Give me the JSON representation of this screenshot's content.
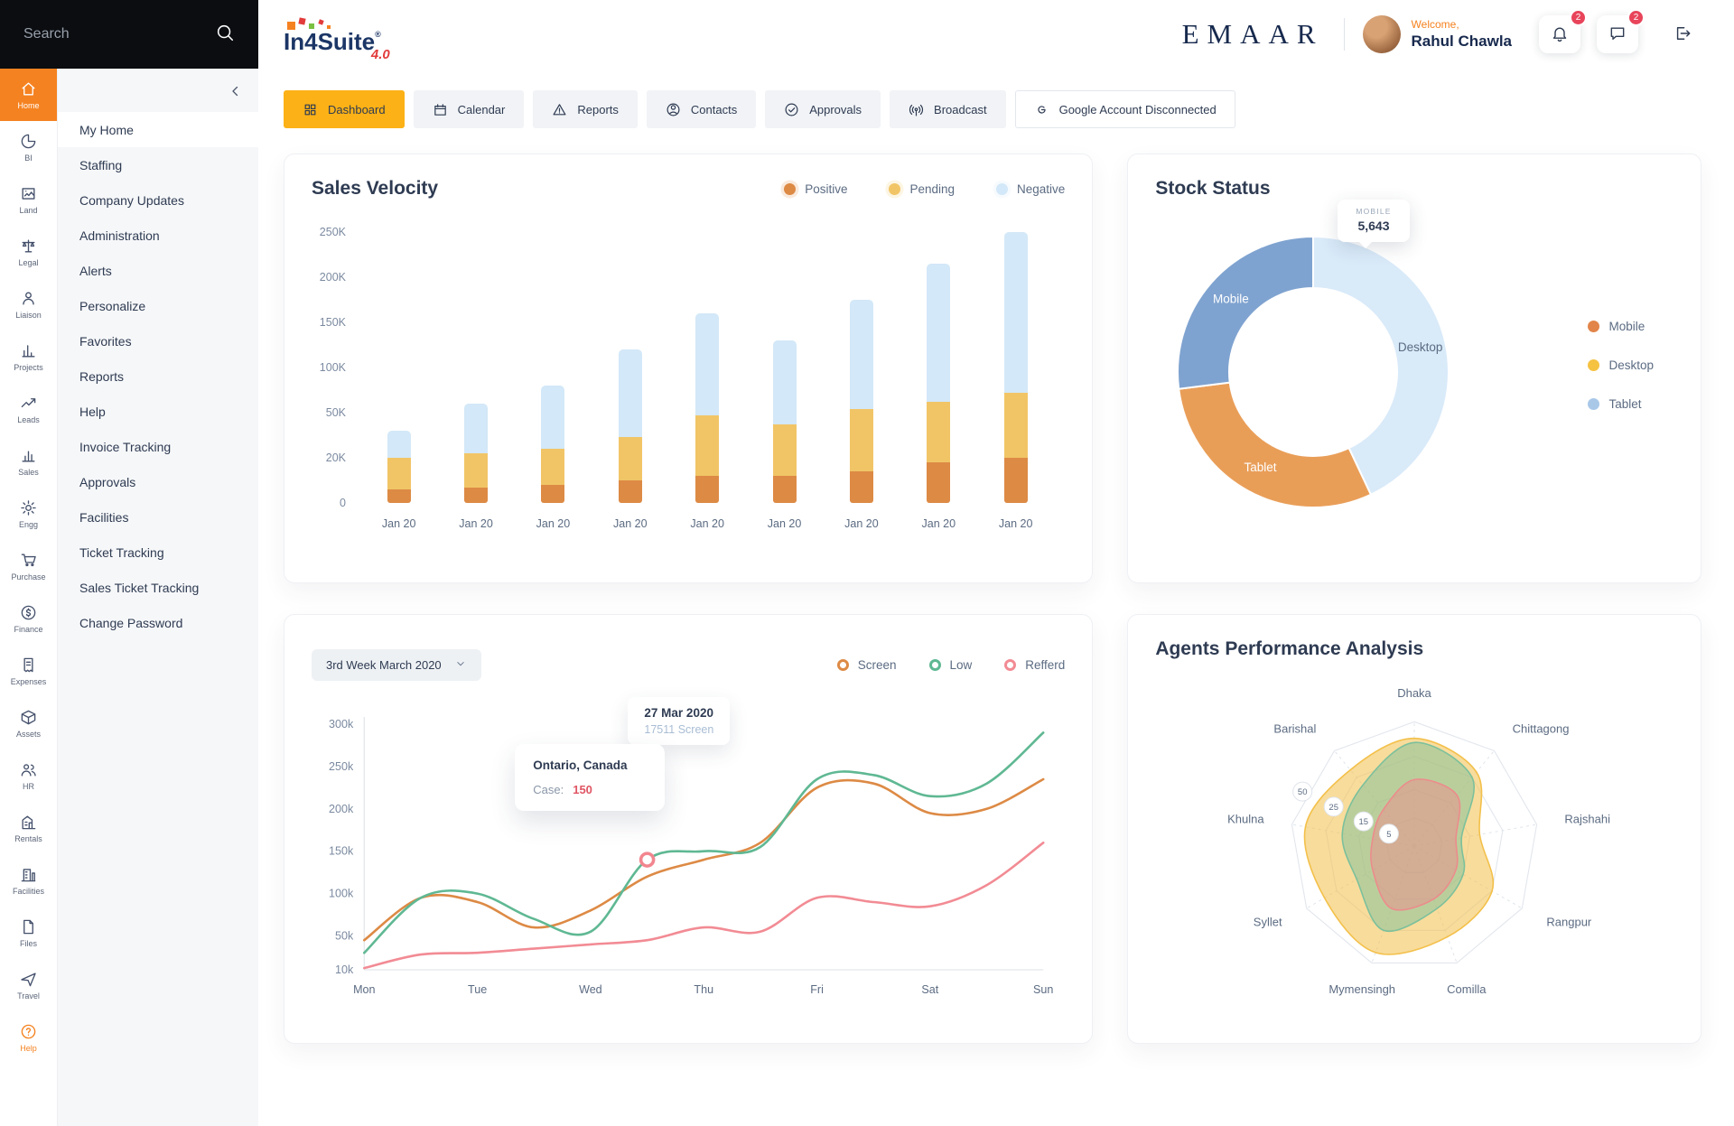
{
  "header": {
    "search": {
      "placeholder": "Search"
    },
    "logo": {
      "name": "In4Suite",
      "reg": "®",
      "version": "4.0"
    },
    "brand": "EMAAR",
    "user": {
      "welcome": "Welcome,",
      "name": "Rahul Chawla"
    },
    "badges": {
      "notifications": "2",
      "messages": "2"
    }
  },
  "sidebar": {
    "rail": [
      {
        "label": "Home",
        "icon": "home",
        "active": true
      },
      {
        "label": "BI",
        "icon": "bi"
      },
      {
        "label": "Land",
        "icon": "land"
      },
      {
        "label": "Legal",
        "icon": "legal"
      },
      {
        "label": "Liaison",
        "icon": "liaison"
      },
      {
        "label": "Projects",
        "icon": "projects"
      },
      {
        "label": "Leads",
        "icon": "leads"
      },
      {
        "label": "Sales",
        "icon": "sales"
      },
      {
        "label": "Engg",
        "icon": "engg"
      },
      {
        "label": "Purchase",
        "icon": "purchase"
      },
      {
        "label": "Finance",
        "icon": "finance"
      },
      {
        "label": "Expenses",
        "icon": "expenses"
      },
      {
        "label": "Assets",
        "icon": "assets"
      },
      {
        "label": "HR",
        "icon": "hr"
      },
      {
        "label": "Rentals",
        "icon": "rentals"
      },
      {
        "label": "Facilities",
        "icon": "facilities"
      },
      {
        "label": "Files",
        "icon": "files"
      },
      {
        "label": "Travel",
        "icon": "travel"
      },
      {
        "label": "Help",
        "icon": "help",
        "accent": true
      }
    ],
    "menu": [
      "My Home",
      "Staffing",
      "Company Updates",
      "Administration",
      "Alerts",
      "Personalize",
      "Favorites",
      "Reports",
      "Help",
      "Invoice Tracking",
      "Approvals",
      "Facilities",
      "Ticket Tracking",
      "Sales Ticket Tracking",
      "Change Password"
    ]
  },
  "tabs": [
    {
      "label": "Dashboard",
      "icon": "dashboard",
      "active": true
    },
    {
      "label": "Calendar",
      "icon": "calendar"
    },
    {
      "label": "Reports",
      "icon": "reports"
    },
    {
      "label": "Contacts",
      "icon": "contacts"
    },
    {
      "label": "Approvals",
      "icon": "approvals"
    },
    {
      "label": "Broadcast",
      "icon": "broadcast"
    },
    {
      "label": "Google Account Disconnected",
      "icon": "google",
      "outline": true
    }
  ],
  "chart_data": [
    {
      "id": "sales_velocity",
      "type": "bar",
      "stacked": true,
      "title": "Sales Velocity",
      "categories": [
        "Jan 20",
        "Jan 20",
        "Jan 20",
        "Jan 20",
        "Jan 20",
        "Jan 20",
        "Jan 20",
        "Jan 20",
        "Jan 20"
      ],
      "series": [
        {
          "name": "Positive",
          "color": "#DD8A45",
          "values": [
            6,
            7,
            8,
            10,
            12,
            12,
            14,
            18,
            20
          ]
        },
        {
          "name": "Pending",
          "color": "#F1C566",
          "values": [
            14,
            16,
            18,
            24,
            36,
            30,
            40,
            44,
            52
          ]
        },
        {
          "name": "Negative",
          "color": "#D3E8F8",
          "values": [
            18,
            37,
            54,
            86,
            112,
            88,
            121,
            153,
            178
          ]
        }
      ],
      "y_ticks": [
        "250K",
        "200K",
        "150K",
        "100K",
        "50K",
        "20K",
        "0"
      ],
      "y_breakpoints": [
        0,
        20,
        50,
        100,
        150,
        200,
        250
      ],
      "unit": "K"
    },
    {
      "id": "stock_status",
      "type": "pie",
      "title": "Stock Status",
      "slices": [
        {
          "label": "Desktop",
          "value": 43,
          "color": "#D9EAF9",
          "text_color": "#5b6b82"
        },
        {
          "label": "Tablet",
          "value": 30,
          "color": "#E99E58",
          "text_color": "#ffffff"
        },
        {
          "label": "Mobile",
          "value": 27,
          "color": "#7FA3D0",
          "text_color": "#ffffff"
        }
      ],
      "tooltip": {
        "label": "MOBILE",
        "value": "5,643"
      },
      "legend": [
        {
          "label": "Mobile",
          "color": "#E2854A"
        },
        {
          "label": "Desktop",
          "color": "#F5C242"
        },
        {
          "label": "Tablet",
          "color": "#A9C8E8"
        }
      ]
    },
    {
      "id": "weekly_trend",
      "type": "line",
      "period_selector": "3rd Week March 2020",
      "legend": [
        {
          "label": "Screen",
          "color": "#DD8A45"
        },
        {
          "label": "Low",
          "color": "#5FB893"
        },
        {
          "label": "Refferd",
          "color": "#F28B94"
        }
      ],
      "x_labels": [
        "Mon",
        "Tue",
        "Wed",
        "Thu",
        "Fri",
        "Sat",
        "Sun"
      ],
      "y_ticks": [
        "300k",
        "250k",
        "200k",
        "150k",
        "100k",
        "50k",
        "10k"
      ],
      "y_tick_values": [
        300,
        250,
        200,
        150,
        100,
        50,
        10
      ],
      "y_range": [
        10,
        300
      ],
      "series": [
        {
          "name": "Screen",
          "color": "#DD8A45",
          "values": [
            45,
            95,
            90,
            60,
            80,
            120,
            140,
            160,
            225,
            230,
            195,
            200,
            235
          ]
        },
        {
          "name": "Low",
          "color": "#5FB893",
          "values": [
            30,
            95,
            100,
            70,
            55,
            140,
            150,
            155,
            235,
            240,
            215,
            230,
            290
          ]
        },
        {
          "name": "Refferd",
          "color": "#F28B94",
          "values": [
            12,
            28,
            30,
            35,
            40,
            45,
            60,
            55,
            95,
            90,
            85,
            110,
            160
          ]
        }
      ],
      "marker": {
        "series": "Low",
        "index": 5
      },
      "tooltips": [
        {
          "date": "27 Mar 2020",
          "detail": "17511 Screen"
        },
        {
          "title": "Ontario, Canada",
          "label": "Case:",
          "value": "150"
        }
      ]
    },
    {
      "id": "agents_performance",
      "type": "radar",
      "title": "Agents Performance Analysis",
      "axes": [
        "Dhaka",
        "Chittagong",
        "Rajshahi",
        "Rangpur",
        "Comilla",
        "Mymensingh",
        "Syllet",
        "Khulna",
        "Barishal"
      ],
      "ring_values": [
        5,
        15,
        25,
        50
      ],
      "series": [
        {
          "name": "yellow",
          "color": "#F3C04A",
          "fill_opacity": 0.55,
          "values": [
            38,
            30,
            18,
            25,
            30,
            42,
            35,
            40,
            32
          ]
        },
        {
          "name": "green",
          "color": "#7CC09B",
          "fill_opacity": 0.5,
          "values": [
            35,
            25,
            12,
            15,
            18,
            25,
            18,
            20,
            22
          ]
        },
        {
          "name": "red",
          "color": "#EC8C8C",
          "fill_opacity": 0.5,
          "values": [
            18,
            18,
            10,
            12,
            15,
            18,
            12,
            10,
            12
          ]
        }
      ]
    }
  ]
}
